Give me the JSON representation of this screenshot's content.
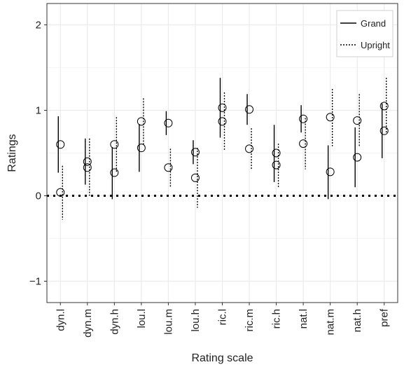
{
  "chart_data": {
    "type": "scatter",
    "xlabel": "Rating scale",
    "ylabel": "Ratings",
    "categories": [
      "dyn.l",
      "dyn.m",
      "dyn.h",
      "lou.l",
      "lou.m",
      "lou.h",
      "ric.l",
      "ric.m",
      "ric.h",
      "nat.l",
      "nat.m",
      "nat.h",
      "pref"
    ],
    "ylim": [
      -1.25,
      2.25
    ],
    "yticks": [
      -1,
      0,
      1,
      2
    ],
    "grid": true,
    "legend_position": "top-right",
    "reference_line": 0,
    "series": [
      {
        "name": "Grand",
        "linestyle": "solid",
        "points": [
          {
            "mean": 0.6,
            "lower": 0.27,
            "upper": 0.93
          },
          {
            "mean": 0.4,
            "lower": 0.13,
            "upper": 0.67
          },
          {
            "mean": 0.27,
            "lower": -0.04,
            "upper": 0.57
          },
          {
            "mean": 0.56,
            "lower": 0.28,
            "upper": 0.84
          },
          {
            "mean": 0.85,
            "lower": 0.71,
            "upper": 0.99
          },
          {
            "mean": 0.51,
            "lower": 0.37,
            "upper": 0.65
          },
          {
            "mean": 1.03,
            "lower": 0.68,
            "upper": 1.38
          },
          {
            "mean": 1.01,
            "lower": 0.83,
            "upper": 1.19
          },
          {
            "mean": 0.5,
            "lower": 0.16,
            "upper": 0.83
          },
          {
            "mean": 0.9,
            "lower": 0.74,
            "upper": 1.06
          },
          {
            "mean": 0.28,
            "lower": -0.04,
            "upper": 0.59
          },
          {
            "mean": 0.45,
            "lower": 0.1,
            "upper": 0.8
          },
          {
            "mean": 0.76,
            "lower": 0.44,
            "upper": 1.08
          }
        ]
      },
      {
        "name": "Upright",
        "linestyle": "dashed",
        "points": [
          {
            "mean": 0.04,
            "lower": -0.28,
            "upper": 0.35
          },
          {
            "mean": 0.33,
            "lower": 0.0,
            "upper": 0.67
          },
          {
            "mean": 0.6,
            "lower": 0.28,
            "upper": 0.92
          },
          {
            "mean": 0.87,
            "lower": 0.6,
            "upper": 1.14
          },
          {
            "mean": 0.33,
            "lower": 0.1,
            "upper": 0.55
          },
          {
            "mean": 0.21,
            "lower": -0.14,
            "upper": 0.56
          },
          {
            "mean": 0.87,
            "lower": 0.53,
            "upper": 1.21
          },
          {
            "mean": 0.55,
            "lower": 0.31,
            "upper": 0.79
          },
          {
            "mean": 0.36,
            "lower": 0.1,
            "upper": 0.61
          },
          {
            "mean": 0.61,
            "lower": 0.31,
            "upper": 0.91
          },
          {
            "mean": 0.92,
            "lower": 0.58,
            "upper": 1.25
          },
          {
            "mean": 0.88,
            "lower": 0.57,
            "upper": 1.19
          },
          {
            "mean": 1.05,
            "lower": 0.72,
            "upper": 1.38
          }
        ]
      }
    ],
    "colors": {
      "line": "#000000",
      "grid": "#ebebeb",
      "panel_border": "#333333",
      "background": "#ffffff"
    }
  }
}
